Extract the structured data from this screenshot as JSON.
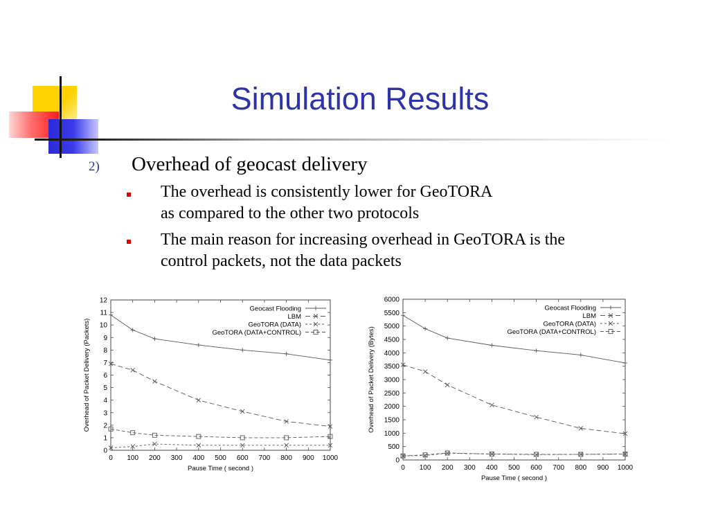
{
  "slide": {
    "title": "Simulation Results",
    "item_number": "2)",
    "heading": "Overhead of geocast delivery",
    "bullets": [
      {
        "line1": "The overhead is consistently lower for GeoTORA",
        "line2": "as compared to the other two protocols"
      },
      {
        "line1": "The main reason for increasing overhead in GeoTORA is the",
        "line2": "control packets, not the data packets"
      }
    ],
    "colors": {
      "title": "#2d33a8",
      "bullet": "#e00000"
    }
  },
  "chart_data": [
    {
      "type": "line",
      "title": "",
      "xlabel": "Pause Time ( second )",
      "ylabel": "Overhead of Packet Delivery (Packets)",
      "xlim": [
        0,
        1000
      ],
      "ylim": [
        0,
        12
      ],
      "xticks": [
        0,
        100,
        200,
        300,
        400,
        500,
        600,
        700,
        800,
        900,
        1000
      ],
      "yticks": [
        0,
        1,
        2,
        3,
        4,
        5,
        6,
        7,
        8,
        9,
        10,
        11,
        12
      ],
      "legend_position": "top-right",
      "x": [
        0,
        100,
        200,
        400,
        600,
        800,
        1000
      ],
      "series": [
        {
          "name": "Geocast Flooding",
          "marker": "plus",
          "dash": "none",
          "values": [
            10.8,
            9.6,
            8.9,
            8.4,
            8.0,
            7.7,
            7.2
          ]
        },
        {
          "name": "LBM",
          "marker": "x",
          "dash": "long",
          "values": [
            6.9,
            6.4,
            5.5,
            4.0,
            3.1,
            2.3,
            1.9
          ]
        },
        {
          "name": "GeoTORA (DATA)",
          "marker": "x",
          "dash": "short",
          "values": [
            0.2,
            0.3,
            0.5,
            0.4,
            0.4,
            0.4,
            0.4
          ]
        },
        {
          "name": "GeoTORA (DATA+CONTROL)",
          "marker": "square",
          "dash": "medium",
          "values": [
            1.7,
            1.4,
            1.2,
            1.1,
            1.0,
            1.0,
            1.1
          ]
        }
      ]
    },
    {
      "type": "line",
      "title": "",
      "xlabel": "Pause Time ( second )",
      "ylabel": "Overhead of Packet Delivery (Bytes)",
      "xlim": [
        0,
        1000
      ],
      "ylim": [
        0,
        6000
      ],
      "xticks": [
        0,
        100,
        200,
        300,
        400,
        500,
        600,
        700,
        800,
        900,
        1000
      ],
      "yticks": [
        0,
        500,
        1000,
        1500,
        2000,
        2500,
        3000,
        3500,
        4000,
        4500,
        5000,
        5500,
        6000
      ],
      "legend_position": "top-right",
      "x": [
        0,
        100,
        200,
        400,
        600,
        800,
        1000
      ],
      "series": [
        {
          "name": "Geocast Flooding",
          "marker": "plus",
          "dash": "none",
          "values": [
            5400,
            4900,
            4550,
            4280,
            4080,
            3920,
            3620
          ]
        },
        {
          "name": "LBM",
          "marker": "x",
          "dash": "long",
          "values": [
            3550,
            3300,
            2800,
            2050,
            1600,
            1180,
            980
          ]
        },
        {
          "name": "GeoTORA (DATA)",
          "marker": "x",
          "dash": "short",
          "values": [
            150,
            170,
            250,
            220,
            200,
            210,
            220
          ]
        },
        {
          "name": "GeoTORA (DATA+CONTROL)",
          "marker": "square",
          "dash": "medium",
          "values": [
            150,
            190,
            260,
            220,
            210,
            210,
            220
          ]
        }
      ]
    }
  ]
}
